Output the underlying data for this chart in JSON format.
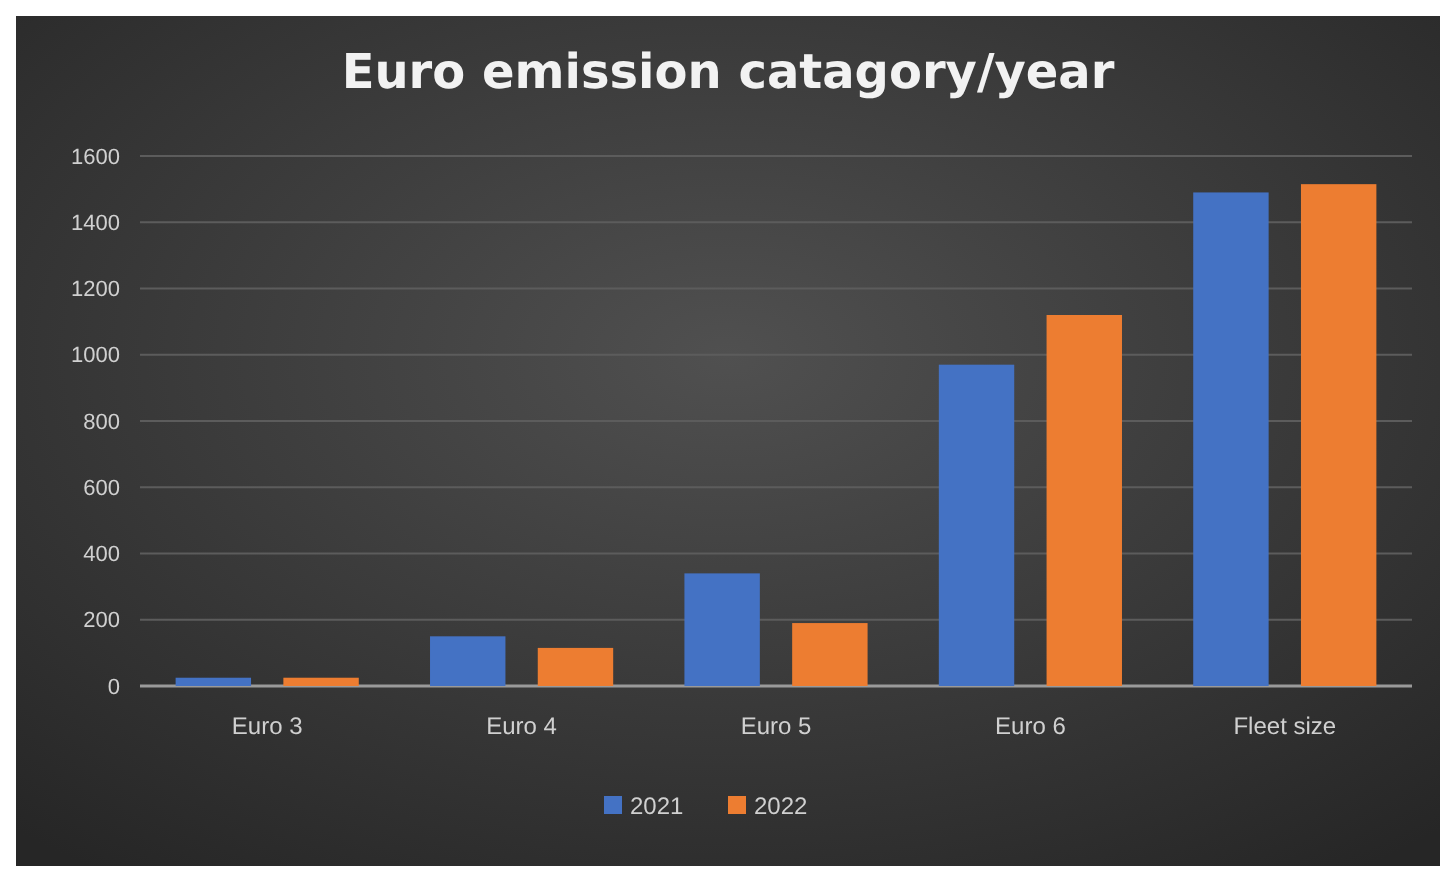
{
  "chart_data": {
    "type": "bar",
    "title": "Euro emission catagory/year",
    "categories": [
      "Euro 3",
      "Euro 4",
      "Euro 5",
      "Euro 6",
      "Fleet size"
    ],
    "series": [
      {
        "name": "2021",
        "color": "#4472c4",
        "values": [
          25,
          150,
          340,
          970,
          1490
        ]
      },
      {
        "name": "2022",
        "color": "#ed7d31",
        "values": [
          25,
          115,
          190,
          1120,
          1515
        ]
      }
    ],
    "ylim": [
      0,
      1600
    ],
    "yticks": [
      0,
      200,
      400,
      600,
      800,
      1000,
      1200,
      1400,
      1600
    ],
    "grid": "y",
    "legend": "bottom"
  }
}
